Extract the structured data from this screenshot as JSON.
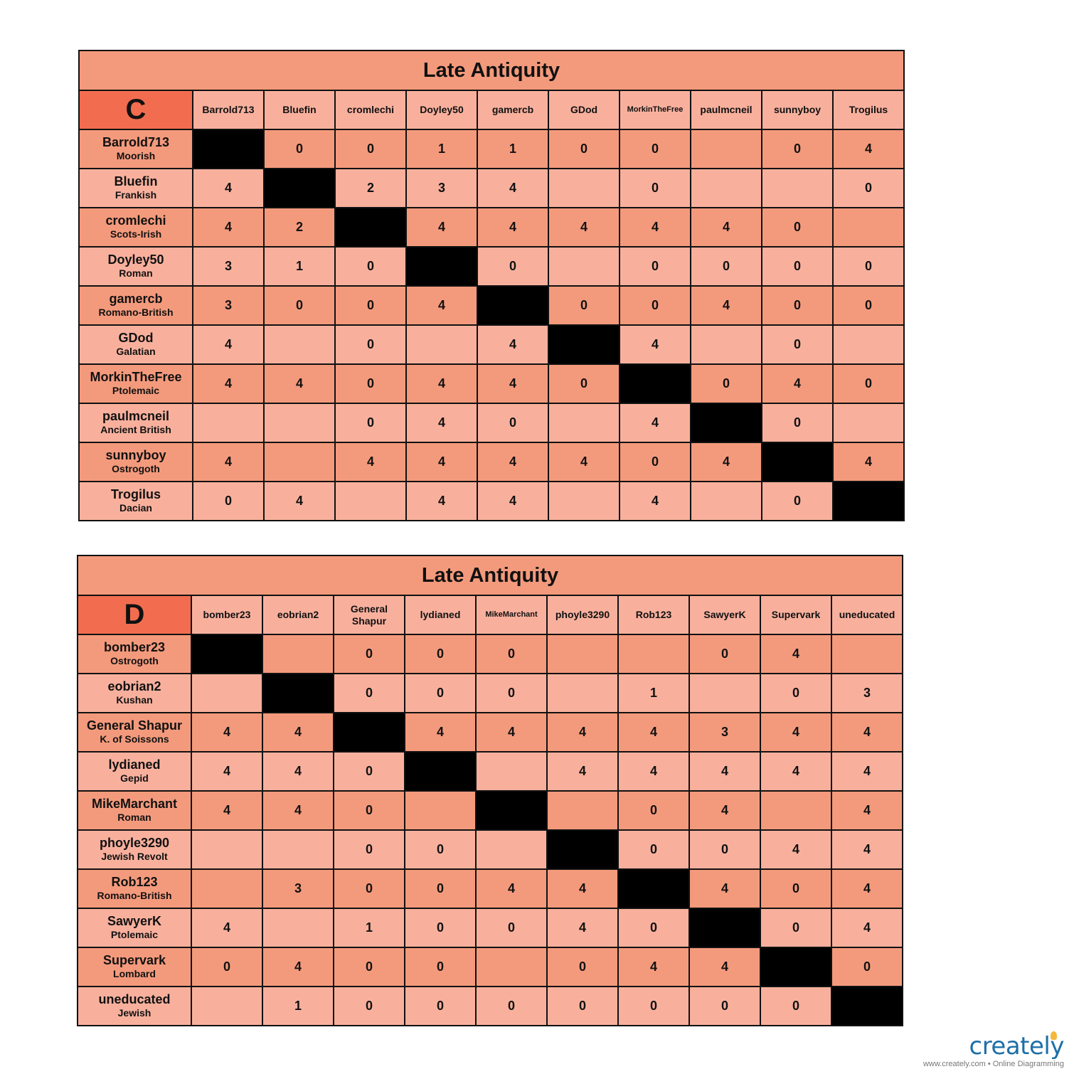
{
  "tables": [
    {
      "title": "Late Antiquity",
      "group": "C",
      "columns": [
        "Barrold713",
        "Bluefin",
        "cromlechi",
        "Doyley50",
        "gamercb",
        "GDod",
        "MorkinTheFree",
        "paulmcneil",
        "sunnyboy",
        "Trogilus"
      ],
      "rows": [
        {
          "name": "Barrold713",
          "army": "Moorish",
          "cells": [
            "",
            "0",
            "0",
            "1",
            "1",
            "0",
            "0",
            "",
            "0",
            "4"
          ]
        },
        {
          "name": "Bluefin",
          "army": "Frankish",
          "cells": [
            "4",
            "",
            "2",
            "3",
            "4",
            "",
            "0",
            "",
            "",
            "0"
          ]
        },
        {
          "name": "cromlechi",
          "army": "Scots-Irish",
          "cells": [
            "4",
            "2",
            "",
            "4",
            "4",
            "4",
            "4",
            "4",
            "0",
            ""
          ]
        },
        {
          "name": "Doyley50",
          "army": "Roman",
          "cells": [
            "3",
            "1",
            "0",
            "",
            "0",
            "",
            "0",
            "0",
            "0",
            "0"
          ]
        },
        {
          "name": "gamercb",
          "army": "Romano-British",
          "cells": [
            "3",
            "0",
            "0",
            "4",
            "",
            "0",
            "0",
            "4",
            "0",
            "0"
          ]
        },
        {
          "name": "GDod",
          "army": "Galatian",
          "cells": [
            "4",
            "",
            "0",
            "",
            "4",
            "",
            "4",
            "",
            "0",
            ""
          ]
        },
        {
          "name": "MorkinTheFree",
          "army": "Ptolemaic",
          "cells": [
            "4",
            "4",
            "0",
            "4",
            "4",
            "0",
            "",
            "0",
            "4",
            "0"
          ]
        },
        {
          "name": "paulmcneil",
          "army": "Ancient British",
          "cells": [
            "",
            "",
            "0",
            "4",
            "0",
            "",
            "4",
            "",
            "0",
            ""
          ]
        },
        {
          "name": "sunnyboy",
          "army": "Ostrogoth",
          "cells": [
            "4",
            "",
            "4",
            "4",
            "4",
            "4",
            "0",
            "4",
            "",
            "4"
          ]
        },
        {
          "name": "Trogilus",
          "army": "Dacian",
          "cells": [
            "0",
            "4",
            "",
            "4",
            "4",
            "",
            "4",
            "",
            "0",
            ""
          ]
        }
      ]
    },
    {
      "title": "Late Antiquity",
      "group": "D",
      "columns": [
        "bomber23",
        "eobrian2",
        "General Shapur",
        "lydianed",
        "MikeMarchant",
        "phoyle3290",
        "Rob123",
        "SawyerK",
        "Supervark",
        "uneducated"
      ],
      "rows": [
        {
          "name": "bomber23",
          "army": "Ostrogoth",
          "cells": [
            "",
            "",
            "0",
            "0",
            "0",
            "",
            "",
            "0",
            "4",
            ""
          ]
        },
        {
          "name": "eobrian2",
          "army": "Kushan",
          "cells": [
            "",
            "",
            "0",
            "0",
            "0",
            "",
            "1",
            "",
            "0",
            "3"
          ]
        },
        {
          "name": "General Shapur",
          "army": "K. of Soissons",
          "cells": [
            "4",
            "4",
            "",
            "4",
            "4",
            "4",
            "4",
            "3",
            "4",
            "4"
          ]
        },
        {
          "name": "lydianed",
          "army": "Gepid",
          "cells": [
            "4",
            "4",
            "0",
            "",
            "",
            "4",
            "4",
            "4",
            "4",
            "4"
          ]
        },
        {
          "name": "MikeMarchant",
          "army": "Roman",
          "cells": [
            "4",
            "4",
            "0",
            "",
            "",
            "",
            "0",
            "4",
            "",
            "4"
          ]
        },
        {
          "name": "phoyle3290",
          "army": "Jewish Revolt",
          "cells": [
            "",
            "",
            "0",
            "0",
            "",
            "",
            "0",
            "0",
            "4",
            "4"
          ]
        },
        {
          "name": "Rob123",
          "army": "Romano-British",
          "cells": [
            "",
            "3",
            "0",
            "0",
            "4",
            "4",
            "",
            "4",
            "0",
            "4"
          ]
        },
        {
          "name": "SawyerK",
          "army": "Ptolemaic",
          "cells": [
            "4",
            "",
            "1",
            "0",
            "0",
            "4",
            "0",
            "",
            "0",
            "4"
          ]
        },
        {
          "name": "Supervark",
          "army": "Lombard",
          "cells": [
            "0",
            "4",
            "0",
            "0",
            "",
            "0",
            "4",
            "4",
            "",
            "0"
          ]
        },
        {
          "name": "uneducated",
          "army": "Jewish",
          "cells": [
            "",
            "1",
            "0",
            "0",
            "0",
            "0",
            "0",
            "0",
            "0",
            ""
          ]
        }
      ]
    }
  ],
  "colors": {
    "header_dark": "#f26d4f",
    "row_odd": "#f49a7c",
    "row_even": "#f8b09d",
    "diagonal": "#000000"
  },
  "logo": {
    "brand": "creately",
    "tagline": "www.creately.com • Online Diagramming"
  }
}
